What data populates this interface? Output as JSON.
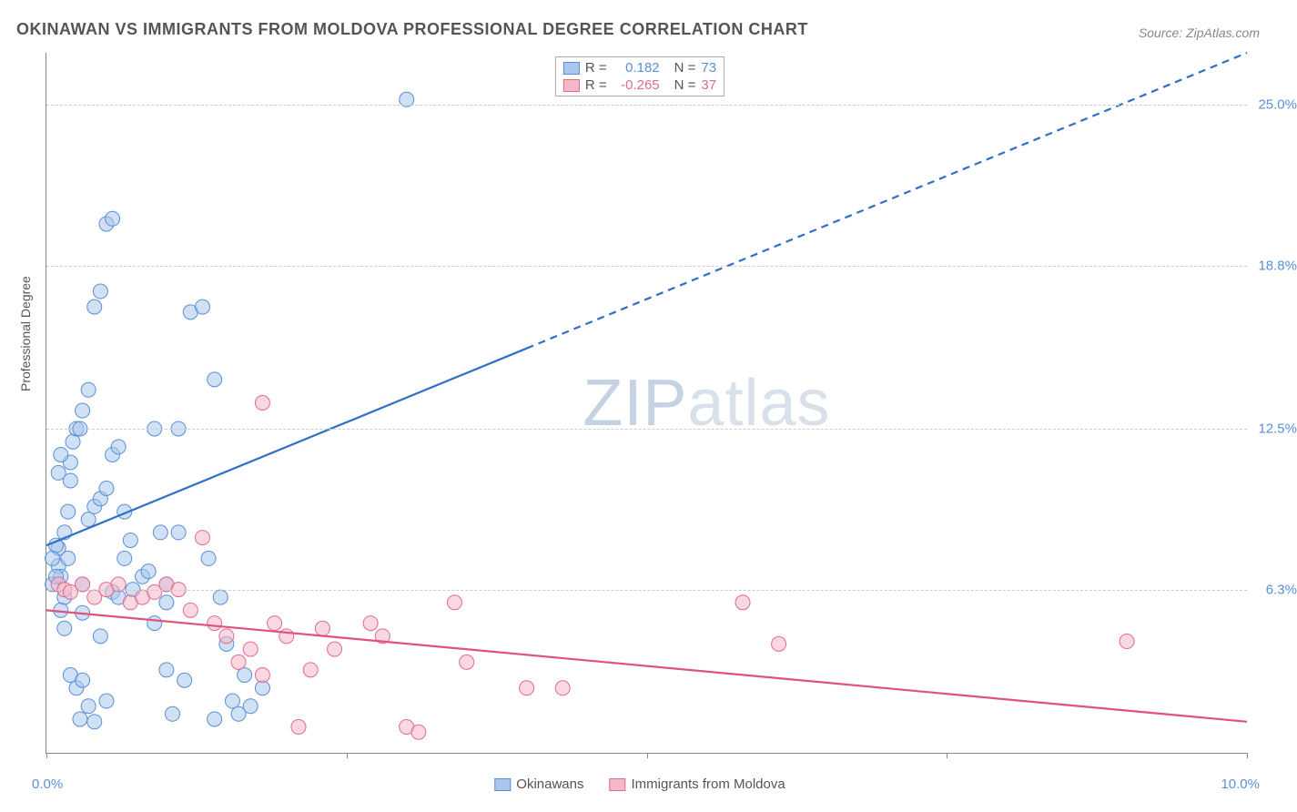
{
  "title": "OKINAWAN VS IMMIGRANTS FROM MOLDOVA PROFESSIONAL DEGREE CORRELATION CHART",
  "source": "Source: ZipAtlas.com",
  "watermark_zip": "ZIP",
  "watermark_atlas": "atlas",
  "y_axis_title": "Professional Degree",
  "chart": {
    "type": "scatter",
    "xlim": [
      0,
      10
    ],
    "ylim": [
      0,
      27
    ],
    "x_tick_positions": [
      0,
      2.5,
      5.0,
      7.5,
      10.0
    ],
    "x_label_min": "0.0%",
    "x_label_max": "10.0%",
    "y_ticks": [
      {
        "v": 6.3,
        "label": "6.3%"
      },
      {
        "v": 12.5,
        "label": "12.5%"
      },
      {
        "v": 18.8,
        "label": "18.8%"
      },
      {
        "v": 25.0,
        "label": "25.0%"
      }
    ],
    "background_color": "#ffffff",
    "grid_color": "#cccccc",
    "axis_color": "#888888",
    "marker_radius": 8,
    "marker_opacity": 0.55,
    "series": [
      {
        "name": "Okinawans",
        "color_fill": "#a9c7ec",
        "color_stroke": "#5a8fd6",
        "color_text": "#5a8fd6",
        "R": "0.182",
        "N": "73",
        "trend": {
          "x1": 0,
          "y1": 8.0,
          "x2": 10,
          "y2": 27.0,
          "solid_until_x": 4.0,
          "stroke": "#2f6fc7",
          "width": 2.2
        },
        "points": [
          [
            0.05,
            6.5
          ],
          [
            0.1,
            7.2
          ],
          [
            0.1,
            7.9
          ],
          [
            0.12,
            6.8
          ],
          [
            0.15,
            8.5
          ],
          [
            0.18,
            9.3
          ],
          [
            0.2,
            10.5
          ],
          [
            0.2,
            11.2
          ],
          [
            0.22,
            12.0
          ],
          [
            0.25,
            12.5
          ],
          [
            0.28,
            12.5
          ],
          [
            0.3,
            13.2
          ],
          [
            0.3,
            5.4
          ],
          [
            0.35,
            14.0
          ],
          [
            0.4,
            17.2
          ],
          [
            0.45,
            17.8
          ],
          [
            0.5,
            20.4
          ],
          [
            0.55,
            20.6
          ],
          [
            0.15,
            6.0
          ],
          [
            0.2,
            3.0
          ],
          [
            0.25,
            2.5
          ],
          [
            0.28,
            1.3
          ],
          [
            0.3,
            2.8
          ],
          [
            0.35,
            1.8
          ],
          [
            0.4,
            1.2
          ],
          [
            0.45,
            4.5
          ],
          [
            0.5,
            2.0
          ],
          [
            0.55,
            6.2
          ],
          [
            0.6,
            6.0
          ],
          [
            0.65,
            7.5
          ],
          [
            0.7,
            8.2
          ],
          [
            0.72,
            6.3
          ],
          [
            0.8,
            6.8
          ],
          [
            0.85,
            7.0
          ],
          [
            0.9,
            5.0
          ],
          [
            0.95,
            8.5
          ],
          [
            1.0,
            6.5
          ],
          [
            1.0,
            3.2
          ],
          [
            1.05,
            1.5
          ],
          [
            1.1,
            12.5
          ],
          [
            1.15,
            2.8
          ],
          [
            1.2,
            17.0
          ],
          [
            1.3,
            17.2
          ],
          [
            1.35,
            7.5
          ],
          [
            1.4,
            1.3
          ],
          [
            1.45,
            6.0
          ],
          [
            1.5,
            4.2
          ],
          [
            1.55,
            2.0
          ],
          [
            1.6,
            1.5
          ],
          [
            1.65,
            3.0
          ],
          [
            1.7,
            1.8
          ],
          [
            1.8,
            2.5
          ],
          [
            1.4,
            14.4
          ],
          [
            0.35,
            9.0
          ],
          [
            0.4,
            9.5
          ],
          [
            0.45,
            9.8
          ],
          [
            0.5,
            10.2
          ],
          [
            0.55,
            11.5
          ],
          [
            0.6,
            11.8
          ],
          [
            0.65,
            9.3
          ],
          [
            0.12,
            5.5
          ],
          [
            0.15,
            4.8
          ],
          [
            0.08,
            8.0
          ],
          [
            0.1,
            10.8
          ],
          [
            0.12,
            11.5
          ],
          [
            0.05,
            7.5
          ],
          [
            0.08,
            6.8
          ],
          [
            0.9,
            12.5
          ],
          [
            1.0,
            5.8
          ],
          [
            1.1,
            8.5
          ],
          [
            0.18,
            7.5
          ],
          [
            0.3,
            6.5
          ],
          [
            3.0,
            25.2
          ]
        ]
      },
      {
        "name": "Immigrants from Moldova",
        "color_fill": "#f5b8c9",
        "color_stroke": "#e26a8f",
        "color_text": "#e26a8f",
        "R": "-0.265",
        "N": "37",
        "trend": {
          "x1": 0,
          "y1": 5.5,
          "x2": 10,
          "y2": 1.2,
          "solid_until_x": 10,
          "stroke": "#e0517c",
          "width": 2.2
        },
        "points": [
          [
            0.1,
            6.5
          ],
          [
            0.15,
            6.3
          ],
          [
            0.2,
            6.2
          ],
          [
            0.3,
            6.5
          ],
          [
            0.4,
            6.0
          ],
          [
            0.5,
            6.3
          ],
          [
            0.6,
            6.5
          ],
          [
            0.7,
            5.8
          ],
          [
            0.8,
            6.0
          ],
          [
            0.9,
            6.2
          ],
          [
            1.0,
            6.5
          ],
          [
            1.1,
            6.3
          ],
          [
            1.2,
            5.5
          ],
          [
            1.3,
            8.3
          ],
          [
            1.4,
            5.0
          ],
          [
            1.5,
            4.5
          ],
          [
            1.6,
            3.5
          ],
          [
            1.7,
            4.0
          ],
          [
            1.8,
            3.0
          ],
          [
            1.9,
            5.0
          ],
          [
            2.0,
            4.5
          ],
          [
            2.1,
            1.0
          ],
          [
            2.2,
            3.2
          ],
          [
            2.3,
            4.8
          ],
          [
            2.4,
            4.0
          ],
          [
            2.7,
            5.0
          ],
          [
            2.8,
            4.5
          ],
          [
            3.0,
            1.0
          ],
          [
            3.1,
            0.8
          ],
          [
            3.4,
            5.8
          ],
          [
            3.5,
            3.5
          ],
          [
            4.0,
            2.5
          ],
          [
            4.3,
            2.5
          ],
          [
            5.8,
            5.8
          ],
          [
            6.1,
            4.2
          ],
          [
            1.8,
            13.5
          ],
          [
            9.0,
            4.3
          ]
        ]
      }
    ]
  },
  "legend_stats": {
    "R_label": "R =",
    "N_label": "N ="
  }
}
